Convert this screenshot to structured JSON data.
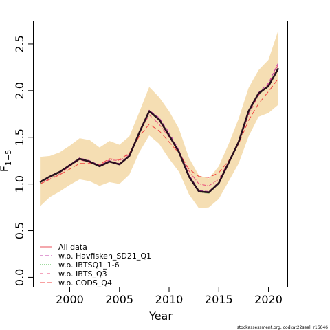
{
  "chart_data": {
    "type": "line",
    "xlabel": "Year",
    "ylabel": "F",
    "ylabel_subscript": "1−5",
    "xlim": [
      1996.3,
      2021.9
    ],
    "ylim": [
      -0.1,
      2.75
    ],
    "x_ticks": [
      2000,
      2005,
      2010,
      2015,
      2020
    ],
    "x_tick_labels": [
      "2000",
      "2005",
      "2010",
      "2015",
      "2020"
    ],
    "y_ticks": [
      0.0,
      0.5,
      1.0,
      1.5,
      2.0,
      2.5
    ],
    "y_tick_labels": [
      "0.0",
      "0.5",
      "1.0",
      "1.5",
      "2.0",
      "2.5"
    ],
    "grid": false,
    "legend_position": "bottom-left",
    "x": [
      1997,
      1998,
      1999,
      2000,
      2001,
      2002,
      2003,
      2004,
      2005,
      2006,
      2007,
      2008,
      2009,
      2010,
      2011,
      2012,
      2013,
      2014,
      2015,
      2016,
      2017,
      2018,
      2019,
      2020,
      2021
    ],
    "band": {
      "color": "#f5deb3",
      "lower": [
        0.76,
        0.86,
        0.92,
        0.99,
        1.05,
        1.03,
        0.98,
        1.02,
        1.0,
        1.1,
        1.34,
        1.52,
        1.43,
        1.27,
        1.13,
        0.89,
        0.74,
        0.75,
        0.84,
        1.03,
        1.22,
        1.51,
        1.72,
        1.76,
        1.85
      ],
      "upper": [
        1.29,
        1.3,
        1.34,
        1.41,
        1.49,
        1.47,
        1.39,
        1.46,
        1.42,
        1.51,
        1.77,
        2.04,
        1.93,
        1.78,
        1.59,
        1.28,
        1.09,
        1.06,
        1.19,
        1.43,
        1.7,
        2.03,
        2.22,
        2.33,
        2.65
      ]
    },
    "main": {
      "values": [
        1.02,
        1.08,
        1.13,
        1.2,
        1.27,
        1.24,
        1.19,
        1.24,
        1.21,
        1.3,
        1.55,
        1.78,
        1.69,
        1.52,
        1.34,
        1.08,
        0.92,
        0.91,
        1.01,
        1.23,
        1.45,
        1.78,
        1.97,
        2.05,
        2.24
      ],
      "color": "#2a0f1f"
    },
    "series": [
      {
        "name": "All data",
        "color": "#e8505b",
        "dash": "",
        "values": [
          1.02,
          1.08,
          1.13,
          1.2,
          1.27,
          1.24,
          1.19,
          1.24,
          1.21,
          1.3,
          1.55,
          1.78,
          1.69,
          1.52,
          1.34,
          1.08,
          0.92,
          0.91,
          1.01,
          1.23,
          1.45,
          1.78,
          1.97,
          2.05,
          2.24
        ]
      },
      {
        "name": "w.o. Havfisken_SD21_Q1",
        "color": "#c03ca8",
        "dash": "5,3",
        "values": [
          1.02,
          1.08,
          1.13,
          1.21,
          1.28,
          1.25,
          1.2,
          1.25,
          1.22,
          1.31,
          1.56,
          1.79,
          1.71,
          1.55,
          1.36,
          1.1,
          0.93,
          0.92,
          1.02,
          1.24,
          1.46,
          1.79,
          1.98,
          2.08,
          2.3
        ]
      },
      {
        "name": "w.o. IBTSQ1_1-6",
        "color": "#3cb43c",
        "dash": "1,2",
        "values": [
          1.01,
          1.07,
          1.12,
          1.2,
          1.27,
          1.24,
          1.19,
          1.24,
          1.21,
          1.3,
          1.55,
          1.77,
          1.68,
          1.51,
          1.33,
          1.07,
          0.91,
          0.9,
          1.0,
          1.22,
          1.44,
          1.77,
          1.96,
          2.04,
          2.23
        ]
      },
      {
        "name": "w.o. IBTS_Q3",
        "color": "#e84878",
        "dash": "5,2,1,2",
        "values": [
          1.0,
          1.06,
          1.11,
          1.19,
          1.26,
          1.23,
          1.2,
          1.26,
          1.25,
          1.32,
          1.55,
          1.74,
          1.64,
          1.5,
          1.35,
          1.14,
          1.0,
          0.98,
          1.05,
          1.24,
          1.44,
          1.74,
          1.95,
          2.07,
          2.28
        ]
      },
      {
        "name": "w.o. CODS_Q4",
        "color": "#f04040",
        "dash": "7,4",
        "values": [
          1.0,
          1.05,
          1.1,
          1.16,
          1.22,
          1.22,
          1.21,
          1.27,
          1.26,
          1.33,
          1.51,
          1.64,
          1.57,
          1.45,
          1.33,
          1.16,
          1.08,
          1.07,
          1.12,
          1.25,
          1.43,
          1.68,
          1.86,
          1.99,
          2.13
        ]
      }
    ],
    "credit": "stockassessment.org, codkat22seal, r16646"
  }
}
